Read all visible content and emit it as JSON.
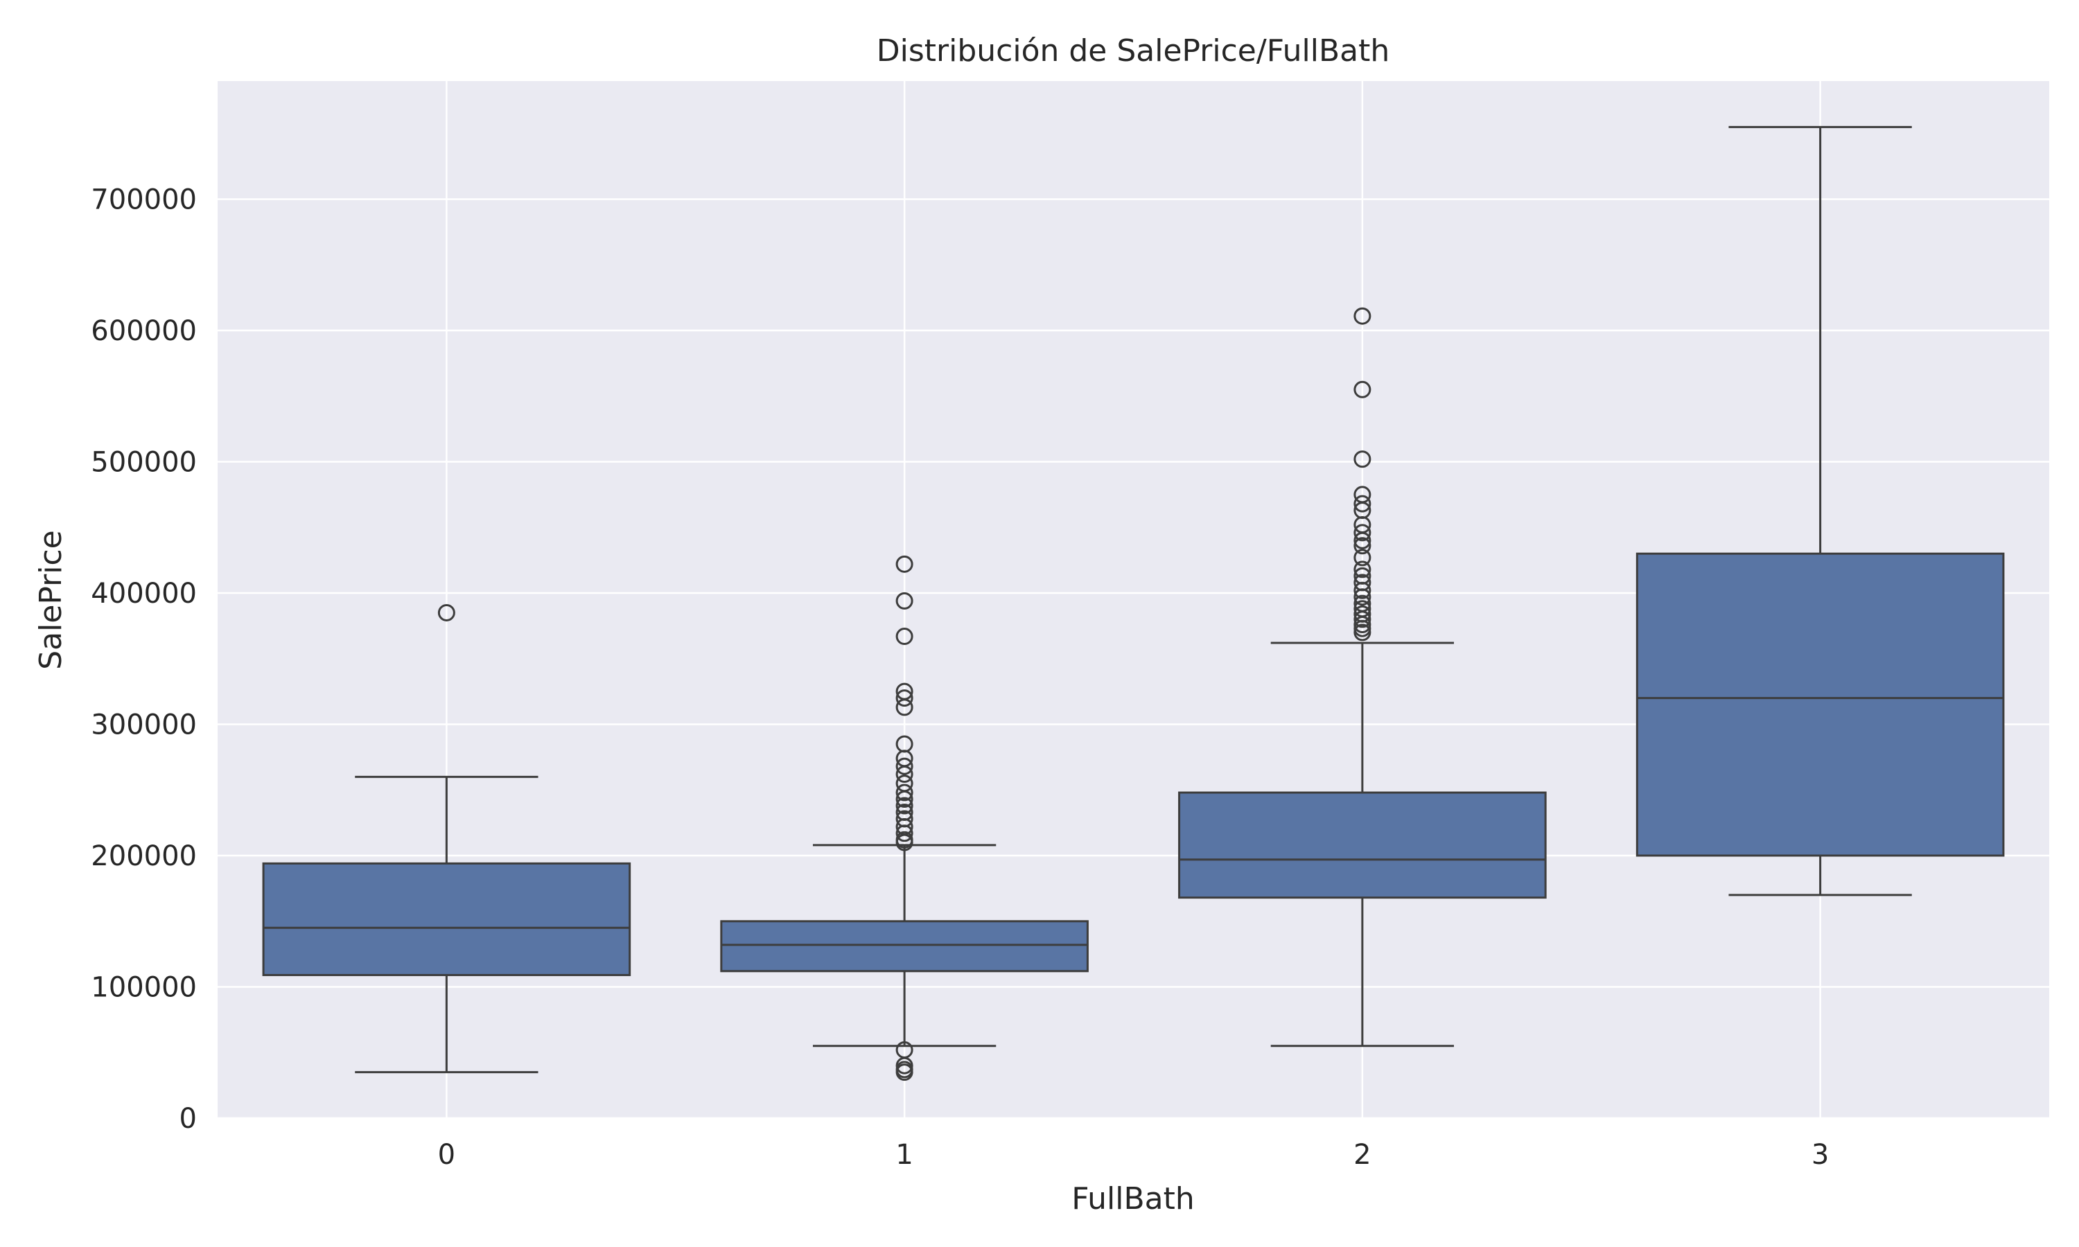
{
  "chart_data": {
    "type": "boxplot",
    "title": "Distribución de SalePrice/FullBath",
    "xlabel": "FullBath",
    "ylabel": "SalePrice",
    "categories": [
      "0",
      "1",
      "2",
      "3"
    ],
    "ylim": [
      0,
      790000
    ],
    "yticks": [
      0,
      100000,
      200000,
      300000,
      400000,
      500000,
      600000,
      700000
    ],
    "ytick_labels": [
      "0",
      "100000",
      "200000",
      "300000",
      "400000",
      "500000",
      "600000",
      "700000"
    ],
    "grid": true,
    "colors": {
      "plot_background": "#eaeaf2",
      "grid": "#ffffff",
      "box_fill": "#5975a4",
      "line": "#3d3d3d"
    },
    "boxes": [
      {
        "category": "0",
        "whisker_low": 35000,
        "q1": 109000,
        "median": 145000,
        "q3": 194000,
        "whisker_high": 260000,
        "outliers": [
          385000
        ]
      },
      {
        "category": "1",
        "whisker_low": 55000,
        "q1": 112000,
        "median": 132000,
        "q3": 150000,
        "whisker_high": 208000,
        "outliers": [
          422000,
          394000,
          367000,
          325000,
          320000,
          313000,
          285000,
          274000,
          268000,
          262000,
          255000,
          248000,
          243000,
          238000,
          233000,
          228000,
          222000,
          217000,
          212000,
          210000,
          52000,
          40000,
          37000,
          35000
        ]
      },
      {
        "category": "2",
        "whisker_low": 55000,
        "q1": 168000,
        "median": 197000,
        "q3": 248000,
        "whisker_high": 362000,
        "outliers": [
          611000,
          555000,
          502000,
          475000,
          468000,
          463000,
          452000,
          446000,
          440000,
          436000,
          427000,
          418000,
          413000,
          408000,
          402000,
          397000,
          392000,
          388000,
          384000,
          380000,
          376000,
          373000,
          370000
        ]
      },
      {
        "category": "3",
        "whisker_low": 170000,
        "q1": 200000,
        "median": 320000,
        "q3": 430000,
        "whisker_high": 755000,
        "outliers": []
      }
    ]
  }
}
